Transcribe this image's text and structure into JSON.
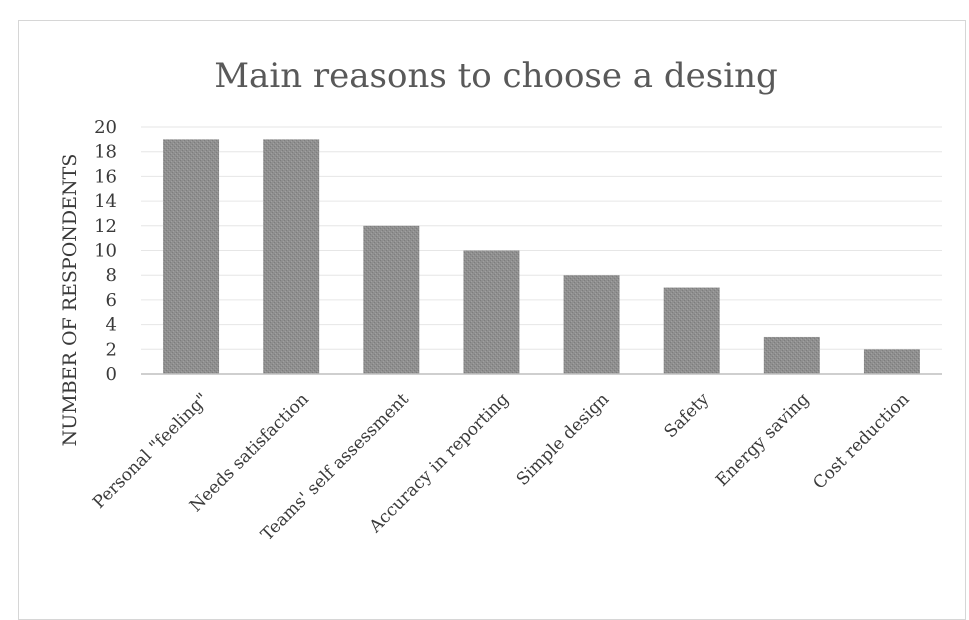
{
  "chart_data": {
    "type": "bar",
    "title": "Main reasons to choose a desing",
    "xlabel": "",
    "ylabel": "NUMBER OF RESPONDENTS",
    "categories": [
      "Personal \"feeling\"",
      "Needs satisfaction",
      "Teams' self assessment",
      "Accuracy in reporting",
      "Simple design",
      "Safety",
      "Energy saving",
      "Cost reduction"
    ],
    "values": [
      19,
      19,
      12,
      10,
      8,
      7,
      3,
      2
    ],
    "ylim": [
      0,
      20
    ],
    "yticks": [
      0,
      2,
      4,
      6,
      8,
      10,
      12,
      14,
      16,
      18,
      20
    ],
    "grid": true,
    "legend": "none",
    "colors": {
      "bar": "#8c8c8c",
      "grid": "#e6e6e6",
      "axis": "#bfbfbf"
    }
  }
}
